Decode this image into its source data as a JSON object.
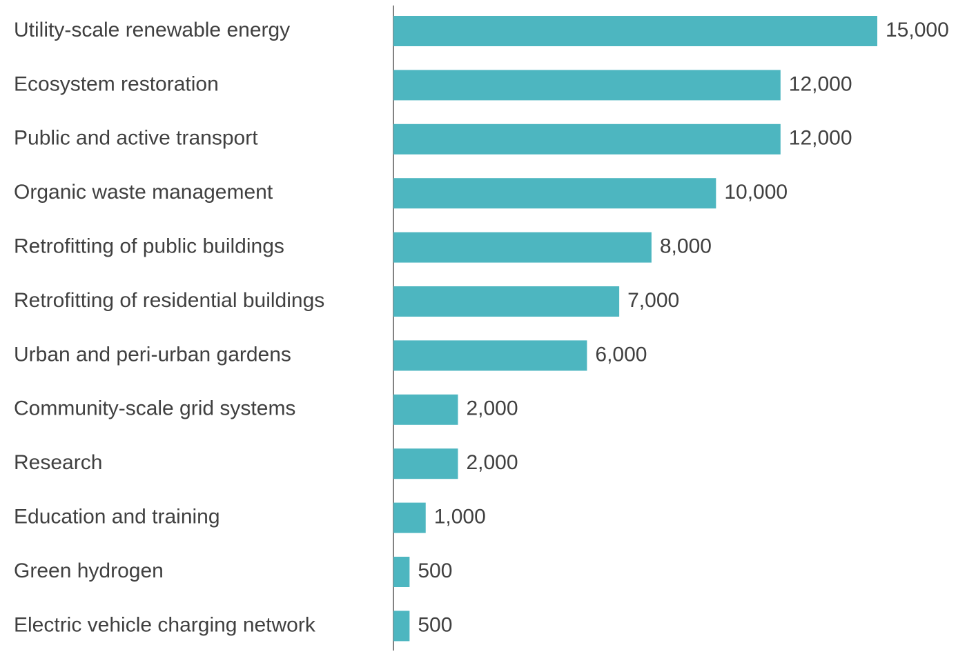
{
  "chart_data": {
    "type": "bar",
    "orientation": "horizontal",
    "categories": [
      "Utility-scale renewable energy",
      "Ecosystem restoration",
      "Public and active transport",
      "Organic waste management",
      "Retrofitting of public buildings",
      "Retrofitting of residential buildings",
      "Urban and peri-urban gardens",
      "Community-scale grid systems",
      "Research",
      "Education and training",
      "Green hydrogen",
      "Electric vehicle charging network"
    ],
    "values": [
      15000,
      12000,
      12000,
      10000,
      8000,
      7000,
      6000,
      2000,
      2000,
      1000,
      500,
      500
    ],
    "value_labels": [
      "15,000",
      "12,000",
      "12,000",
      "10,000",
      "8,000",
      "7,000",
      "6,000",
      "2,000",
      "2,000",
      "1,000",
      "500",
      "500"
    ],
    "color": "#4db6c0",
    "xlim": [
      0,
      15000
    ]
  }
}
